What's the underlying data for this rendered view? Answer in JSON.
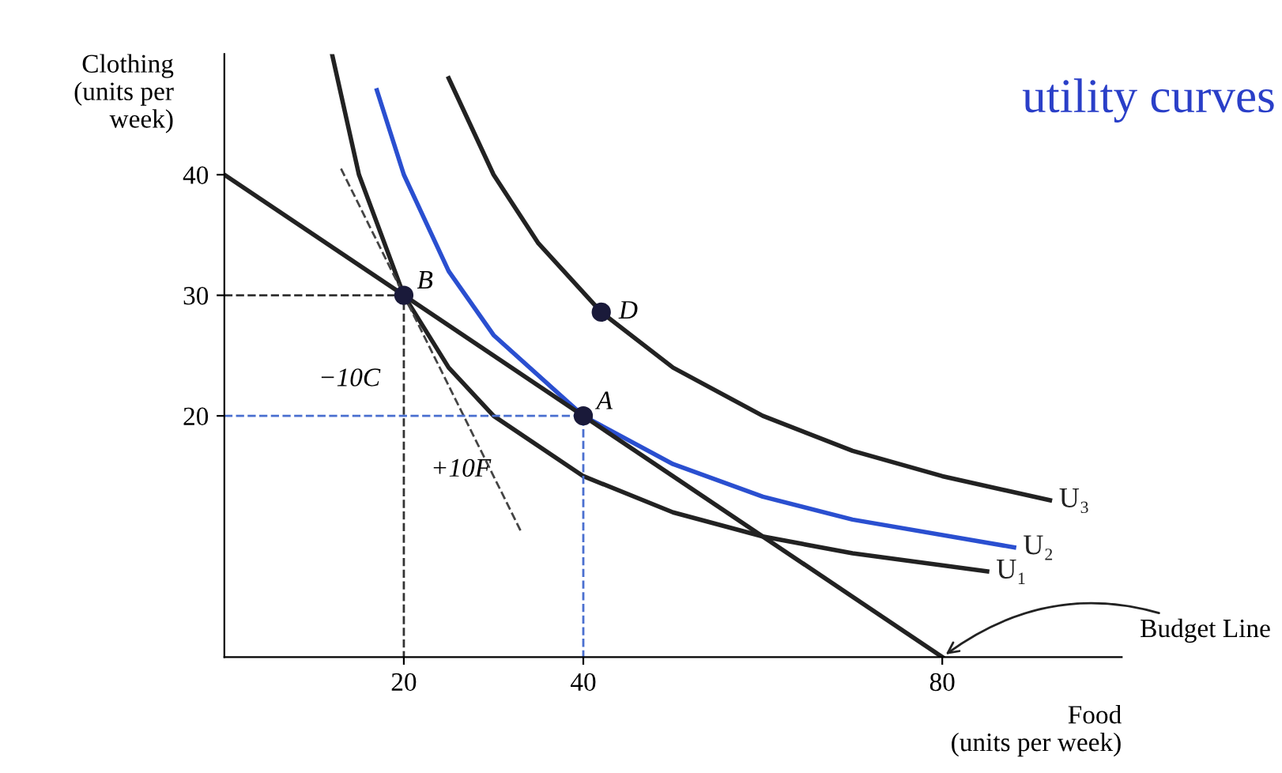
{
  "chart_data": {
    "type": "line",
    "title": "utility curves",
    "xlabel": "Food\n(units per week)",
    "ylabel": "Clothing\n(units per\nweek)",
    "xlim": [
      0,
      100
    ],
    "ylim": [
      0,
      50
    ],
    "xticks": [
      20,
      40,
      80
    ],
    "yticks": [
      20,
      30,
      40
    ],
    "grid": false,
    "legend": false,
    "series": [
      {
        "name": "U₁",
        "color": "#222222",
        "line_style": "solid",
        "x": [
          12,
          15,
          20,
          25,
          30,
          40,
          50,
          60,
          70,
          85
        ],
        "values": [
          50,
          40,
          30,
          24,
          20,
          15,
          12,
          10,
          8.6,
          7.1
        ]
      },
      {
        "name": "U₂",
        "color": "#2a4fd0",
        "line_style": "solid",
        "x": [
          17,
          20,
          25,
          30,
          40,
          50,
          60,
          70,
          88
        ],
        "values": [
          47,
          40,
          32,
          26.7,
          20,
          16,
          13.3,
          11.4,
          9.1
        ]
      },
      {
        "name": "U₃",
        "color": "#222222",
        "line_style": "solid",
        "x": [
          25,
          30,
          35,
          42,
          50,
          60,
          70,
          80,
          92
        ],
        "values": [
          48,
          40,
          34.3,
          28.6,
          24,
          20,
          17.1,
          15,
          13
        ]
      },
      {
        "type": "line",
        "color": "#222222",
        "line_style": "solid",
        "x": [
          0,
          80
        ],
        "values": [
          40,
          0
        ]
      },
      {
        "type": "line",
        "color": "#444444",
        "line_style": "dashed",
        "x": [
          13,
          33
        ],
        "values": [
          40.5,
          10.5
        ]
      },
      {
        "type": "line",
        "color": "#333333",
        "line_style": "dashed",
        "x": [
          0,
          20,
          20
        ],
        "values": [
          30,
          30,
          0
        ]
      },
      {
        "type": "line",
        "color": "#4a6fd0",
        "line_style": "dashed",
        "x": [
          0,
          40,
          40
        ],
        "values": [
          20,
          20,
          0
        ]
      },
      {
        "type": "scatter",
        "color": "#1a1a3a",
        "marker": "circle",
        "x": [
          20,
          40,
          42
        ],
        "values": [
          30,
          20,
          28.6
        ]
      }
    ],
    "annotations": [
      {
        "text": "B",
        "x": 20,
        "y": 30
      },
      {
        "text": "A",
        "x": 40,
        "y": 20
      },
      {
        "text": "D",
        "x": 42,
        "y": 28.6
      },
      "−10C",
      "+10F",
      {
        "text": "Budget Line",
        "x": 80,
        "y": 0
      }
    ]
  }
}
